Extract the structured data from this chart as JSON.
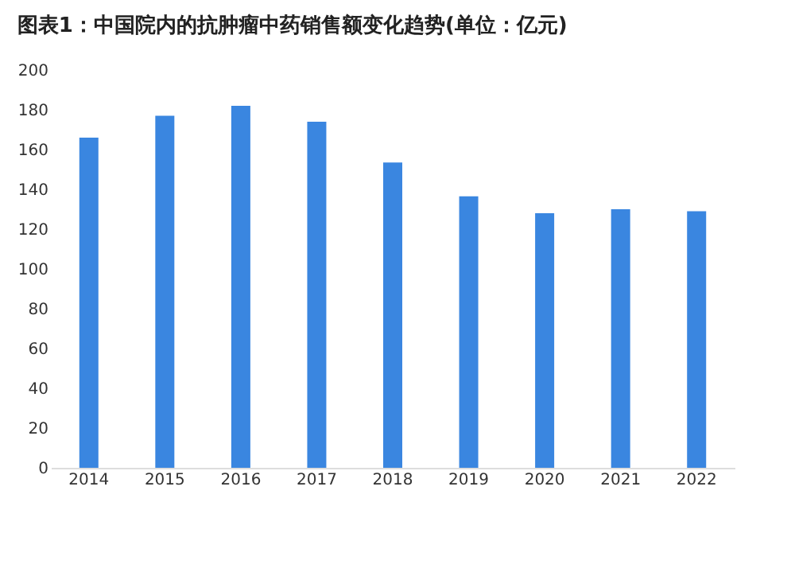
{
  "chart_data": {
    "type": "bar",
    "title": "图表1：中国院内的抗肿瘤中药销售额变化趋势(单位：亿元)",
    "categories": [
      "2014",
      "2015",
      "2016",
      "2017",
      "2018",
      "2019",
      "2020",
      "2021",
      "2022"
    ],
    "values": [
      166,
      177,
      182,
      174,
      153.5,
      136.5,
      128,
      130,
      129
    ],
    "color": "#3a86e0",
    "ylim": [
      0,
      200
    ],
    "yticks": [
      0,
      20,
      40,
      60,
      80,
      100,
      120,
      140,
      160,
      180,
      200
    ],
    "grid": false
  }
}
